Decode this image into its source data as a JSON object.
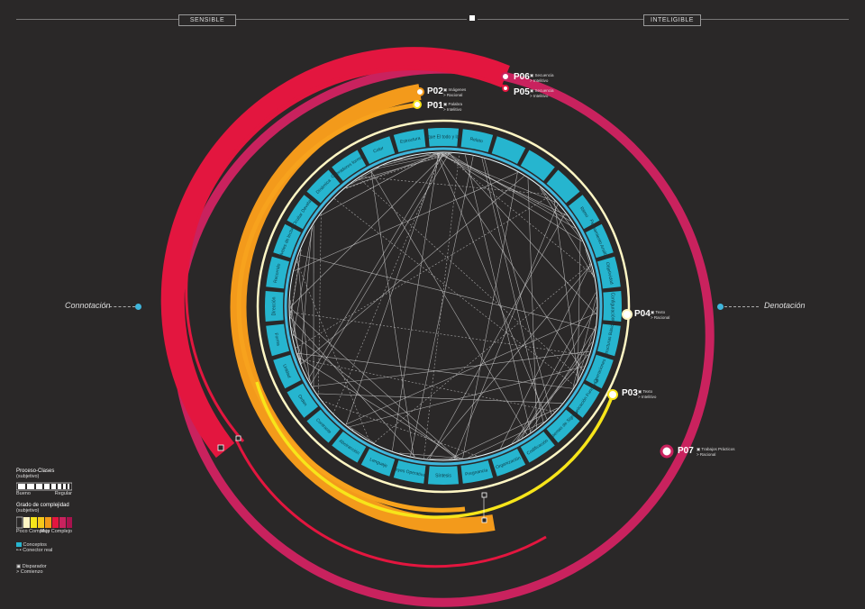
{
  "header": {
    "left_tab": "SENSIBLE",
    "right_tab": "INTELIGIBLE"
  },
  "axes": {
    "left": "Connotación",
    "right": "Denotación"
  },
  "colors": {
    "background": "#2a2828",
    "concept": "#26b5cf",
    "ring_yellow": "#fff6c4",
    "magenta": "#c9225e",
    "red": "#e3163f",
    "orange": "#f39a1b",
    "yellow": "#f7e51a"
  },
  "triggers": [
    {
      "id": "P06",
      "line1": "Secuencia",
      "line2": "Intelitivo"
    },
    {
      "id": "P05",
      "line1": "Secuencia",
      "line2": "Intelitivo"
    },
    {
      "id": "P02",
      "line1": "Imágenes",
      "line2": "Racional"
    },
    {
      "id": "P01",
      "line1": "Palabra",
      "line2": "Intelitivo"
    },
    {
      "id": "P04",
      "line1": "Texto",
      "line2": "Racional"
    },
    {
      "id": "P03",
      "line1": "Texto",
      "line2": "Intelitivo"
    },
    {
      "id": "P07",
      "line1": "Trabajos Prácticos",
      "line2": "Racional"
    }
  ],
  "concepts": [
    "Sinécdoque El todo y las partes",
    "Relato",
    "",
    "",
    "",
    "Ritmo",
    "Pensamiento Analógico",
    "Objetividad",
    "Configuración",
    "Estructuras Básicas",
    "Operaciones",
    "Comunicación Funcional",
    "Sistemas de Signos",
    "Codificación",
    "Organización",
    "Pregnancia",
    "Síntesis",
    "Leyes Operativas",
    "Lenguaje",
    "Abstracción",
    "Contraste",
    "Orden",
    "Unidad",
    "Forma",
    "Dirección",
    "Recorrido",
    "Niveles de lectura",
    "Ocultar Develar",
    "Dinámica",
    "Operadores formales",
    "Color",
    "Estructura"
  ],
  "legend": {
    "proceso_title": "Proceso-Clases",
    "proceso_sub": "(subjetivo)",
    "proceso_low": "Bueno",
    "proceso_high": "Regular",
    "grado_title": "Grado de complejidad",
    "grado_sub": "(subjetivo)",
    "grado_low": "Poco Complejo",
    "grado_high": "Muy Complejo",
    "conceptos": "Conceptos",
    "conector": "Conector real",
    "disparador": "Disparador",
    "comienzo": "Comienzo"
  }
}
